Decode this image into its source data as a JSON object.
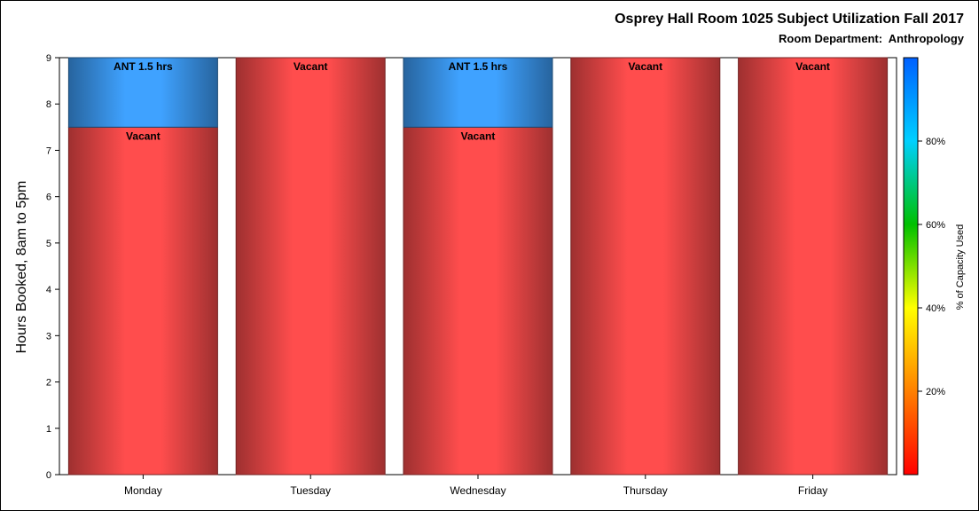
{
  "chart_data": {
    "type": "bar",
    "stacked": true,
    "title": "Osprey Hall Room 1025 Subject Utilization Fall 2017",
    "subtitle": "Room Department:  Anthropology",
    "xlabel": "",
    "ylabel": "Hours Booked, 8am to 5pm",
    "ylim": [
      0,
      9
    ],
    "yticks": [
      0,
      1,
      2,
      3,
      4,
      5,
      6,
      7,
      8,
      9
    ],
    "grid": false,
    "categories": [
      "Monday",
      "Tuesday",
      "Wednesday",
      "Thursday",
      "Friday"
    ],
    "bars": [
      {
        "category": "Monday",
        "segments": [
          {
            "label": "Vacant",
            "value": 7.5,
            "color": "#ff4d4d"
          },
          {
            "label": "ANT 1.5 hrs",
            "value": 1.5,
            "color": "#3fa2ff"
          }
        ]
      },
      {
        "category": "Tuesday",
        "segments": [
          {
            "label": "Vacant",
            "value": 9,
            "color": "#ff4d4d"
          }
        ]
      },
      {
        "category": "Wednesday",
        "segments": [
          {
            "label": "Vacant",
            "value": 7.5,
            "color": "#ff4d4d"
          },
          {
            "label": "ANT 1.5 hrs",
            "value": 1.5,
            "color": "#3fa2ff"
          }
        ]
      },
      {
        "category": "Thursday",
        "segments": [
          {
            "label": "Vacant",
            "value": 9,
            "color": "#ff4d4d"
          }
        ]
      },
      {
        "category": "Friday",
        "segments": [
          {
            "label": "Vacant",
            "value": 9,
            "color": "#ff4d4d"
          }
        ]
      }
    ],
    "colorbar": {
      "label": "% of Capacity Used",
      "ticks": [
        20,
        40,
        60,
        80
      ],
      "tick_labels": [
        "20%",
        "40%",
        "60%",
        "80%"
      ],
      "range": [
        0,
        100
      ],
      "colors": [
        "#ff0000",
        "#ff8000",
        "#ffff00",
        "#00c000",
        "#00d0ff",
        "#0060ff"
      ]
    }
  }
}
